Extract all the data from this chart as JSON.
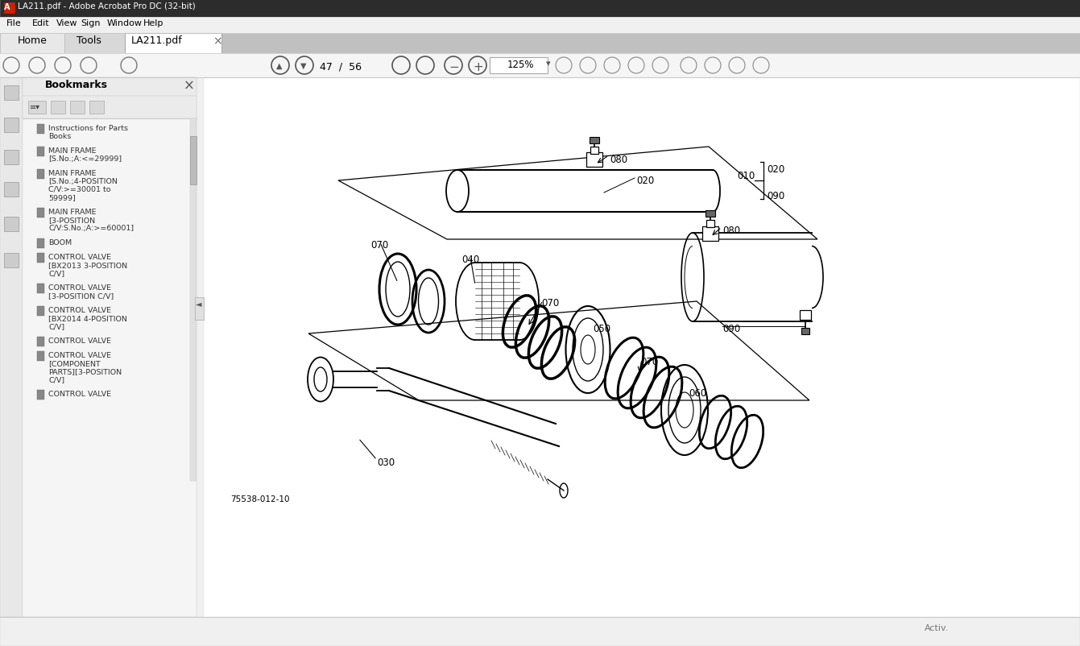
{
  "title_bar": "LA211.pdf - Adobe Acrobat Pro DC (32-bit)",
  "menu_items": [
    "File",
    "Edit",
    "View",
    "Sign",
    "Window",
    "Help"
  ],
  "page_info": "47 / 56",
  "zoom_level": "125%",
  "bookmark_items": [
    [
      "Instructions for Parts",
      "Books"
    ],
    [
      "MAIN FRAME",
      "[S.No.;A:<=29999]"
    ],
    [
      "MAIN FRAME",
      "[S.No.;4-POSITION",
      "C/V:>=30001 to",
      "59999]"
    ],
    [
      "MAIN FRAME",
      "[3-POSITION",
      "C/V:S.No.;A:>=60001]"
    ],
    [
      "BOOM"
    ],
    [
      "CONTROL VALVE",
      "[BX2013 3-POSITION",
      "C/V]"
    ],
    [
      "CONTROL VALVE",
      "[3-POSITION C/V]"
    ],
    [
      "CONTROL VALVE",
      "[BX2014 4-POSITION",
      "C/V]"
    ],
    [
      "CONTROL VALVE"
    ],
    [
      "CONTROL VALVE",
      "[COMPONENT",
      "PARTS][3-POSITION",
      "C/V]"
    ],
    [
      "CONTROL VALVE"
    ]
  ],
  "diagram_label": "75538-012-10",
  "bg_color": "#f0f0f0",
  "white": "#ffffff",
  "sidebar_bg": "#f5f5f5",
  "panel_bg": "#ebebeb"
}
